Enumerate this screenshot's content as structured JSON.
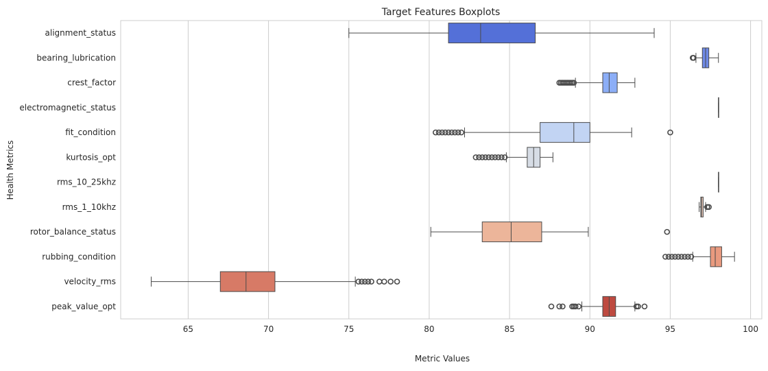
{
  "chart_data": {
    "type": "boxplot",
    "title": "Target Features Boxplots",
    "xlabel": "Metric Values",
    "ylabel": "Health Metrics",
    "xlim": [
      60.8,
      100.7
    ],
    "xticks": [
      65,
      70,
      75,
      80,
      85,
      90,
      95,
      100
    ],
    "grid": "vertical",
    "series": [
      {
        "name": "alignment_status",
        "color": "#5470d8",
        "whisker_low": 75.0,
        "q1": 81.2,
        "median": 83.2,
        "q3": 86.6,
        "whisker_high": 94.0,
        "outliers": []
      },
      {
        "name": "bearing_lubrication",
        "color": "#6f8ae6",
        "whisker_low": 96.6,
        "q1": 97.0,
        "median": 97.2,
        "q3": 97.4,
        "whisker_high": 98.0,
        "outliers": [
          96.4,
          96.45
        ]
      },
      {
        "name": "crest_factor",
        "color": "#8caef7",
        "whisker_low": 89.1,
        "q1": 90.8,
        "median": 91.2,
        "q3": 91.7,
        "whisker_high": 92.8,
        "outliers": [
          88.1,
          88.2,
          88.3,
          88.4,
          88.5,
          88.6,
          88.7,
          88.8,
          88.9,
          89.0
        ]
      },
      {
        "name": "electromagnetic_status",
        "color": "#a9c4fc",
        "whisker_low": 98.0,
        "q1": 98.0,
        "median": 98.0,
        "q3": 98.0,
        "whisker_high": 98.0,
        "outliers": []
      },
      {
        "name": "fit_condition",
        "color": "#c2d4f3",
        "whisker_low": 82.2,
        "q1": 86.9,
        "median": 89.0,
        "q3": 90.0,
        "whisker_high": 92.6,
        "outliers": [
          80.4,
          80.6,
          80.8,
          81.0,
          81.2,
          81.4,
          81.6,
          81.8,
          82.0,
          95.0
        ]
      },
      {
        "name": "kurtosis_opt",
        "color": "#d6dce5",
        "whisker_low": 84.8,
        "q1": 86.1,
        "median": 86.5,
        "q3": 86.9,
        "whisker_high": 87.7,
        "outliers": [
          82.9,
          83.1,
          83.3,
          83.5,
          83.7,
          83.9,
          84.1,
          84.3,
          84.5,
          84.7
        ]
      },
      {
        "name": "rms_10_25khz",
        "color": "#e4dbd4",
        "whisker_low": 98.0,
        "q1": 98.0,
        "median": 98.0,
        "q3": 98.0,
        "whisker_high": 98.0,
        "outliers": []
      },
      {
        "name": "rms_1_10khz",
        "color": "#efcdbd",
        "whisker_low": 96.8,
        "q1": 96.9,
        "median": 96.95,
        "q3": 97.05,
        "whisker_high": 97.2,
        "outliers": [
          97.3,
          97.4
        ]
      },
      {
        "name": "rotor_balance_status",
        "color": "#ecb59a",
        "whisker_low": 80.1,
        "q1": 83.3,
        "median": 85.1,
        "q3": 87.0,
        "whisker_high": 89.9,
        "outliers": [
          94.8
        ]
      },
      {
        "name": "rubbing_condition",
        "color": "#e99a7f",
        "whisker_low": 96.4,
        "q1": 97.5,
        "median": 97.8,
        "q3": 98.2,
        "whisker_high": 99.0,
        "outliers": [
          94.7,
          94.9,
          95.1,
          95.3,
          95.5,
          95.7,
          95.9,
          96.1,
          96.3
        ]
      },
      {
        "name": "velocity_rms",
        "color": "#d77a66",
        "whisker_low": 62.7,
        "q1": 67.0,
        "median": 68.6,
        "q3": 70.4,
        "whisker_high": 75.4,
        "outliers": [
          75.6,
          75.8,
          76.0,
          76.2,
          76.4,
          76.9,
          77.2,
          77.6,
          78.0
        ]
      },
      {
        "name": "peak_value_opt",
        "color": "#be4a40",
        "whisker_low": 89.5,
        "q1": 90.8,
        "median": 91.2,
        "q3": 91.6,
        "whisker_high": 92.8,
        "outliers": [
          87.6,
          88.1,
          88.3,
          88.9,
          89.0,
          89.1,
          89.3,
          92.9,
          93.0,
          93.4
        ]
      }
    ]
  }
}
